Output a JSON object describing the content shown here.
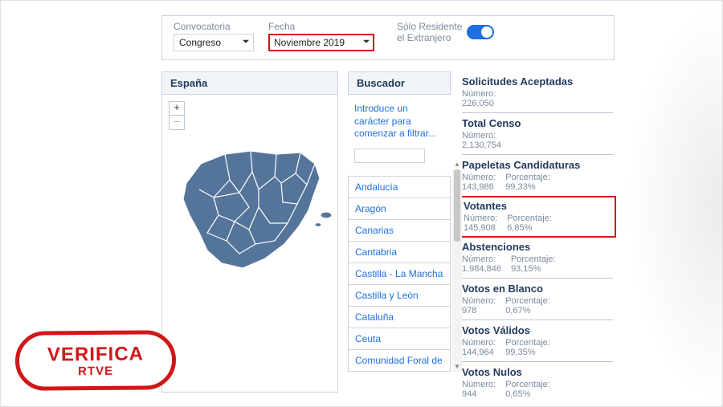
{
  "filters": {
    "convocatoria_label": "Convocatoria",
    "convocatoria_value": "Congreso",
    "fecha_label": "Fecha",
    "fecha_value": "Noviembre 2019",
    "residentes_label_1": "Sólo Residente",
    "residentes_label_2": "el Extranjero",
    "toggle_on": true,
    "fecha_highlight_color": "#d01818"
  },
  "map": {
    "title": "España",
    "fill": "#54749a",
    "stroke": "#ffffff",
    "zoom_in": "+",
    "zoom_out": "–"
  },
  "buscador": {
    "title": "Buscador",
    "hint": "Introduce un carácter para comenzar a filtrar...",
    "placeholder": ""
  },
  "regions": [
    "Andalucía",
    "Aragón",
    "Canarias",
    "Cantabria",
    "Castilla - La Mancha",
    "Castilla y León",
    "Cataluña",
    "Ceuta",
    "Comunidad Foral de"
  ],
  "stats": [
    {
      "title": "Solicitudes Aceptadas",
      "numero": "226,050",
      "porcentaje": null,
      "highlight": false
    },
    {
      "title": "Total Censo",
      "numero": "2,130,754",
      "porcentaje": null,
      "highlight": false
    },
    {
      "title": "Papeletas Candidaturas",
      "numero": "143,986",
      "porcentaje": "99,33%",
      "highlight": false
    },
    {
      "title": "Votantes",
      "numero": "145,908",
      "porcentaje": "6,85%",
      "highlight": true
    },
    {
      "title": "Abstenciones",
      "numero": "1,984,846",
      "porcentaje": "93,15%",
      "highlight": false
    },
    {
      "title": "Votos en Blanco",
      "numero": "978",
      "porcentaje": "0,67%",
      "highlight": false
    },
    {
      "title": "Votos Válidos",
      "numero": "144,964",
      "porcentaje": "99,35%",
      "highlight": false
    },
    {
      "title": "Votos Nulos",
      "numero": "944",
      "porcentaje": "0,65%",
      "highlight": false
    }
  ],
  "labels": {
    "numero": "Número:",
    "porcentaje": "Porcentaje:"
  },
  "stamp": {
    "main": "VERIFICA",
    "sub": "RTVE",
    "color": "#d01818"
  },
  "colors": {
    "link": "#1e6fe0",
    "panel_border": "#c9d4e0",
    "heading": "#223a5e",
    "muted": "#7a8a9c",
    "highlight_border": "#d01818"
  }
}
